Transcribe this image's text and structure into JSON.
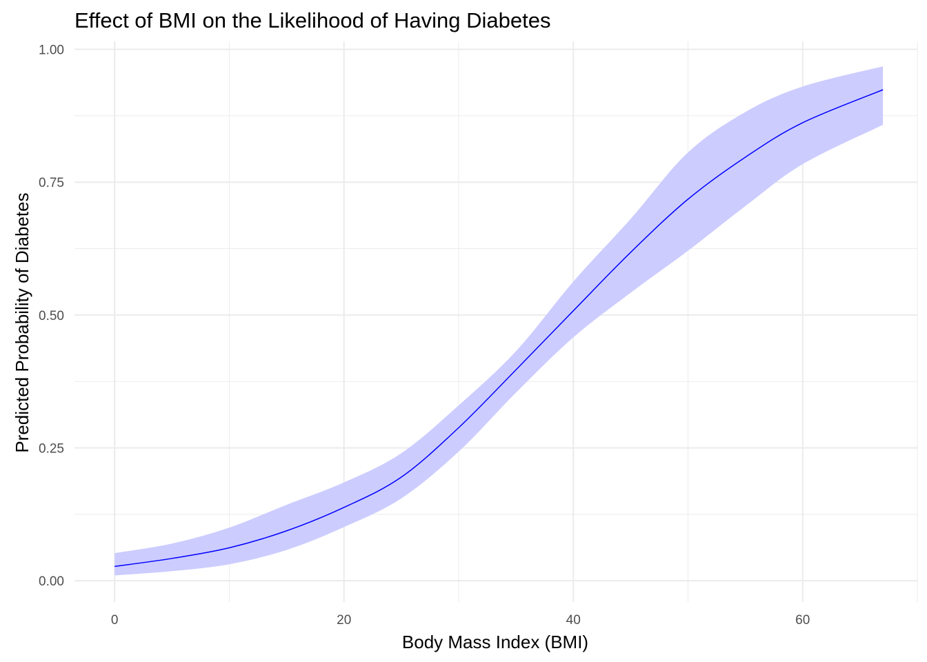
{
  "chart_data": {
    "type": "line",
    "title": "Effect of BMI on the Likelihood of Having Diabetes",
    "xlabel": "Body Mass Index (BMI)",
    "ylabel": "Predicted Probability of Diabetes",
    "xlim": [
      -3.5,
      70
    ],
    "ylim": [
      -0.04,
      1.015
    ],
    "x_ticks": [
      0,
      20,
      40,
      60
    ],
    "x_tick_labels": [
      "0",
      "20",
      "40",
      "60"
    ],
    "y_ticks": [
      0,
      0.25,
      0.5,
      0.75,
      1
    ],
    "y_tick_labels": [
      "0.00",
      "0.25",
      "0.50",
      "0.75",
      "1.00"
    ],
    "x_minor_ticks": [
      10,
      30,
      50,
      70
    ],
    "y_minor_ticks": [
      0.125,
      0.375,
      0.625,
      0.875
    ],
    "grid": true,
    "colors": {
      "line": "#0000ff",
      "ribbon": "#ccccff",
      "grid": "#ebebeb"
    },
    "series": [
      {
        "x": [
          0,
          5,
          10,
          15,
          20,
          25,
          30,
          35,
          40,
          45,
          50,
          55,
          60,
          67
        ],
        "values": [
          0.027,
          0.042,
          0.062,
          0.094,
          0.138,
          0.195,
          0.288,
          0.397,
          0.508,
          0.618,
          0.718,
          0.797,
          0.862,
          0.924
        ],
        "lower": [
          0.01,
          0.018,
          0.031,
          0.058,
          0.101,
          0.155,
          0.243,
          0.354,
          0.458,
          0.542,
          0.621,
          0.705,
          0.784,
          0.858
        ],
        "upper": [
          0.052,
          0.07,
          0.1,
          0.143,
          0.185,
          0.24,
          0.33,
          0.432,
          0.563,
          0.681,
          0.806,
          0.882,
          0.93,
          0.968
        ]
      }
    ]
  }
}
